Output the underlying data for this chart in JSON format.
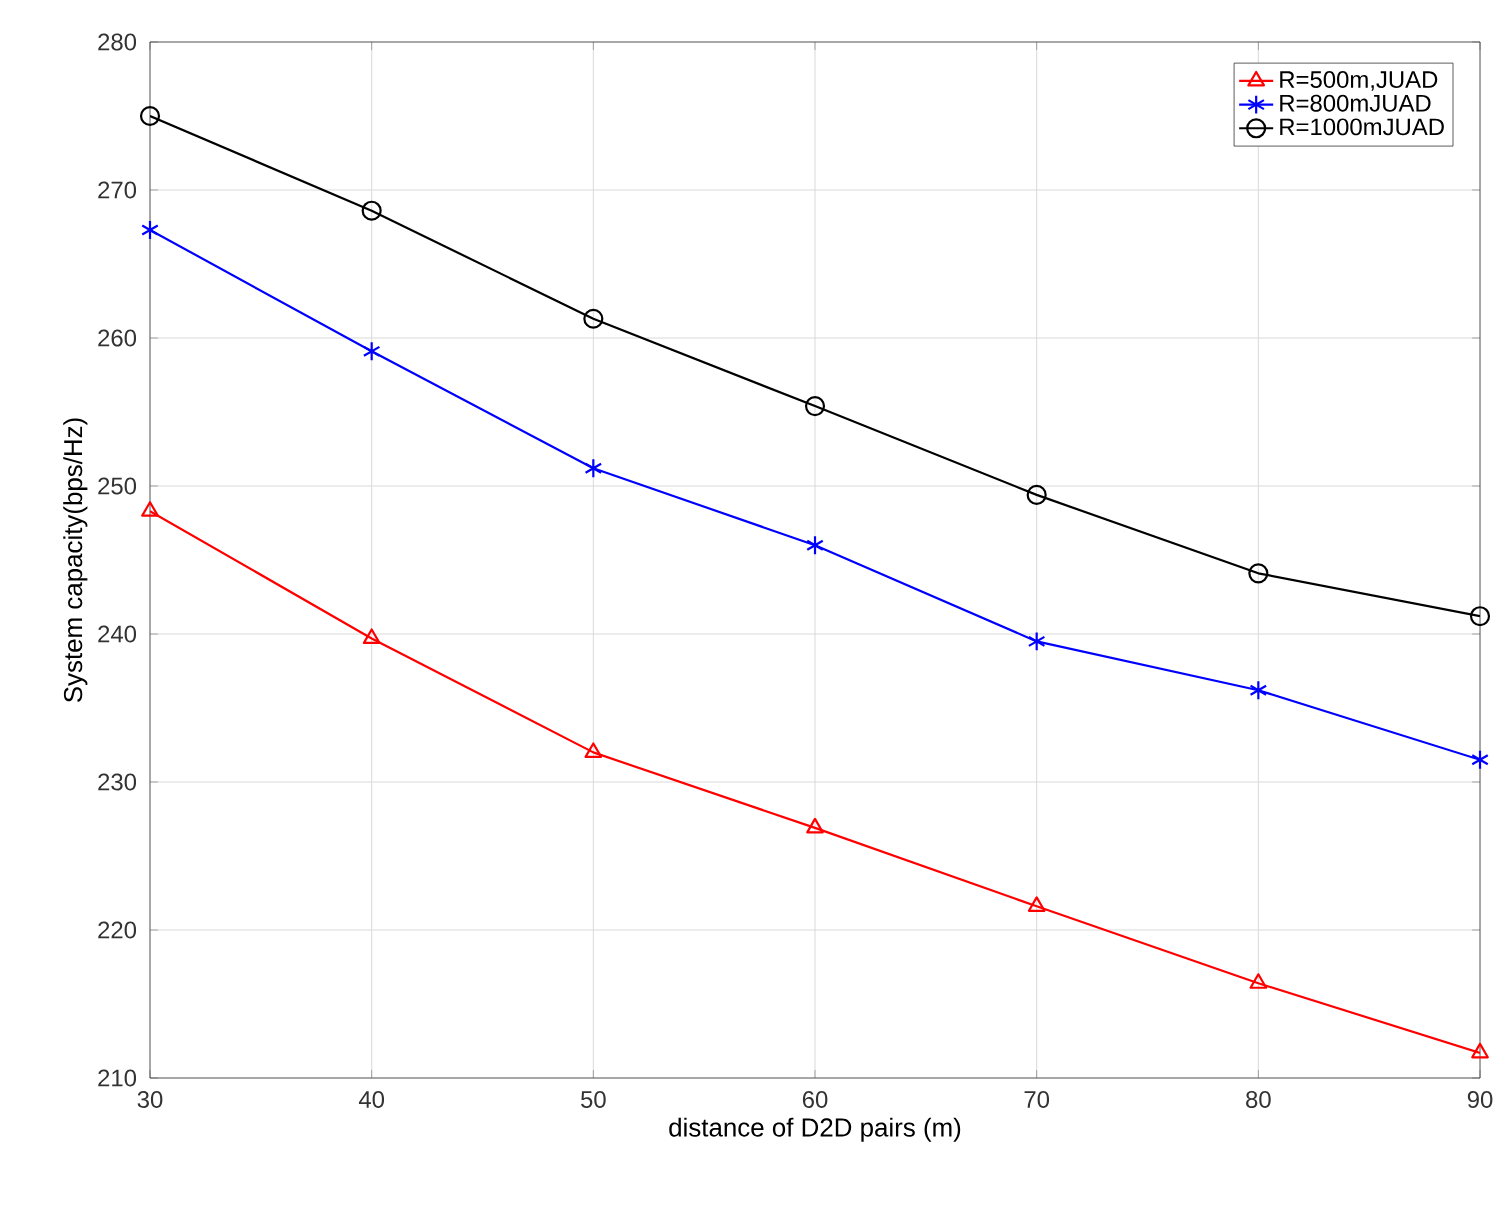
{
  "chart_data": {
    "type": "line",
    "xlabel": "distance of D2D pairs (m)",
    "ylabel": "System capacity(bps/Hz)",
    "x": [
      30,
      40,
      50,
      60,
      70,
      80,
      90
    ],
    "series": [
      {
        "name": "R=500m,JUAD",
        "color": "#ff0000",
        "marker": "triangle",
        "values": [
          248.3,
          239.7,
          232.0,
          226.9,
          221.6,
          216.4,
          211.7
        ]
      },
      {
        "name": "R=800mJUAD",
        "color": "#0000ff",
        "marker": "cross",
        "values": [
          267.3,
          259.1,
          251.2,
          246.0,
          239.5,
          236.2,
          231.5
        ]
      },
      {
        "name": "R=1000mJUAD",
        "color": "#000000",
        "marker": "circle",
        "values": [
          275.0,
          268.6,
          261.3,
          255.4,
          249.4,
          244.1,
          241.2
        ]
      }
    ],
    "xlim": [
      30,
      90
    ],
    "xticks": [
      30,
      40,
      50,
      60,
      70,
      80,
      90
    ],
    "ylim": [
      210,
      280
    ],
    "yticks": [
      210,
      220,
      230,
      240,
      250,
      260,
      270,
      280
    ],
    "grid": true,
    "legend": "top right",
    "line_style": "solid"
  }
}
